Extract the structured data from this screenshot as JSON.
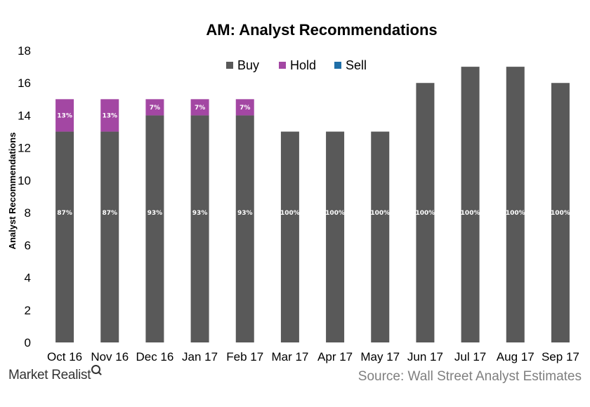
{
  "chart_data": {
    "type": "bar",
    "stacked": true,
    "title": "AM: Analyst Recommendations",
    "ylabel": "Analyst Recommendations",
    "xlabel": "",
    "ylim": [
      0,
      18
    ],
    "yticks": [
      0,
      2,
      4,
      6,
      8,
      10,
      12,
      14,
      16,
      18
    ],
    "grid": false,
    "legend_position": "top-center",
    "categories": [
      "Oct 16",
      "Nov 16",
      "Dec 16",
      "Jan 17",
      "Feb 17",
      "Mar 17",
      "Apr 17",
      "May 17",
      "Jun 17",
      "Jul 17",
      "Aug 17",
      "Sep 17"
    ],
    "series": [
      {
        "name": "Buy",
        "color": "#595959",
        "values": [
          13,
          13,
          14,
          14,
          14,
          13,
          13,
          13,
          16,
          17,
          17,
          16
        ],
        "labels": [
          "87%",
          "87%",
          "93%",
          "93%",
          "93%",
          "100%",
          "100%",
          "100%",
          "100%",
          "100%",
          "100%",
          "100%"
        ]
      },
      {
        "name": "Hold",
        "color": "#a347a3",
        "values": [
          2,
          2,
          1,
          1,
          1,
          0,
          0,
          0,
          0,
          0,
          0,
          0
        ],
        "labels": [
          "13%",
          "13%",
          "7%",
          "7%",
          "7%",
          "",
          "",
          "",
          "",
          "",
          "",
          ""
        ]
      },
      {
        "name": "Sell",
        "color": "#1f6fa8",
        "values": [
          0,
          0,
          0,
          0,
          0,
          0,
          0,
          0,
          0,
          0,
          0,
          0
        ],
        "labels": [
          "",
          "",
          "",
          "",
          "",
          "",
          "",
          "",
          "",
          "",
          "",
          ""
        ]
      }
    ]
  },
  "branding": {
    "logo_text": "Market Realist",
    "source_text": "Source: Wall Street Analyst Estimates"
  }
}
